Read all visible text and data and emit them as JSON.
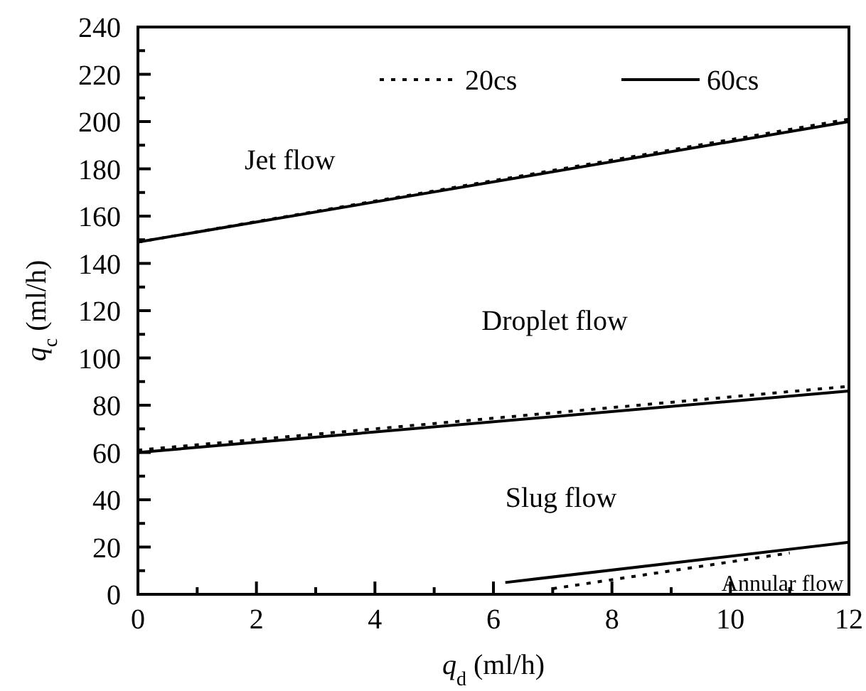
{
  "chart_data": {
    "type": "line",
    "xlabel": "q$_{d}$ (ml/h)",
    "ylabel": "q$_{c}$ (ml/h)",
    "xlim": [
      0,
      12
    ],
    "ylim": [
      0,
      240
    ],
    "xticks": [
      0,
      {
        "value": 1,
        "label": null
      },
      2,
      {
        "value": 3,
        "label": null
      },
      4,
      {
        "value": 5,
        "label": null
      },
      6,
      {
        "value": 7,
        "label": null
      },
      8,
      {
        "value": 9,
        "label": null
      },
      10,
      {
        "value": 11,
        "label": null
      },
      12
    ],
    "yticks": [
      0,
      {
        "value": 10,
        "label": null
      },
      20,
      {
        "value": 30,
        "label": null
      },
      40,
      {
        "value": 50,
        "label": null
      },
      60,
      {
        "value": 70,
        "label": null
      },
      80,
      {
        "value": 90,
        "label": null
      },
      100,
      {
        "value": 110,
        "label": null
      },
      120,
      {
        "value": 130,
        "label": null
      },
      140,
      {
        "value": 150,
        "label": null
      },
      160,
      {
        "value": 170,
        "label": null
      },
      180,
      {
        "value": 190,
        "label": null
      },
      200,
      {
        "value": 210,
        "label": null
      },
      220,
      {
        "value": 230,
        "label": null
      },
      240
    ],
    "grid": false,
    "legend": "top right",
    "marker": "none",
    "series": [
      {
        "name": "20cs",
        "color": "#000000",
        "line_style": "dotted",
        "x": [
          0,
          12
        ],
        "values": [
          149,
          201
        ]
      },
      {
        "name": "60cs",
        "color": "#000000",
        "line_style": "solid",
        "x": [
          0,
          12
        ],
        "values": [
          149,
          200
        ]
      },
      {
        "color": "#000000",
        "line_style": "dotted",
        "x": [
          0,
          12
        ],
        "values": [
          61,
          88
        ]
      },
      {
        "color": "#000000",
        "line_style": "solid",
        "x": [
          0,
          12
        ],
        "values": [
          60,
          86
        ]
      },
      {
        "color": "#000000",
        "line_style": "dotted",
        "x": [
          7,
          11
        ],
        "values": [
          2.4,
          17.5
        ]
      },
      {
        "color": "#000000",
        "line_style": "solid",
        "x": [
          6.2,
          12
        ],
        "values": [
          5,
          22
        ]
      }
    ],
    "annotations": [
      "Jet flow",
      "Droplet flow",
      "Slug flow",
      "Annular flow"
    ]
  }
}
